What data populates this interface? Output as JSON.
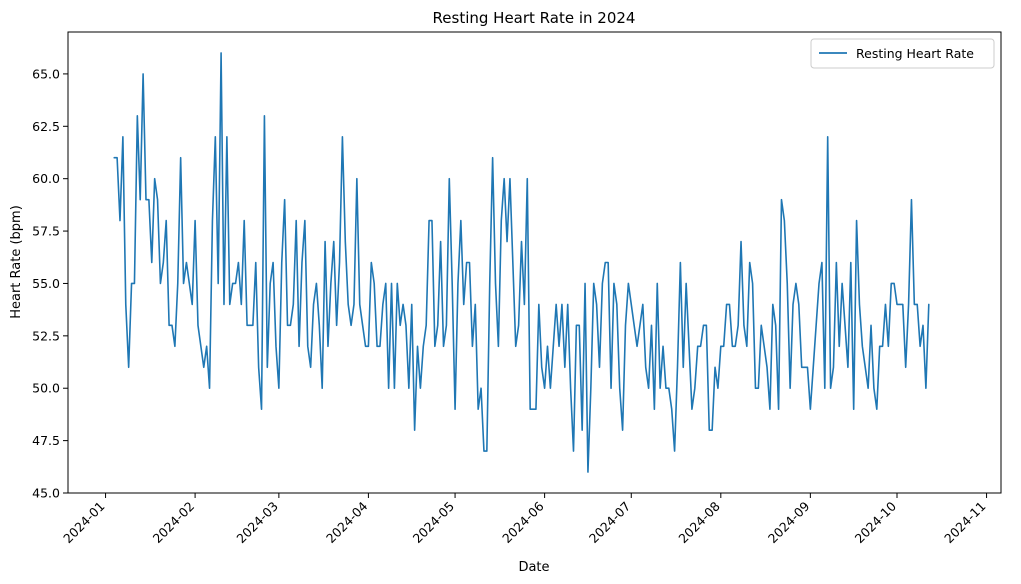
{
  "chart_data": {
    "type": "line",
    "title": "Resting Heart Rate in 2024",
    "xlabel": "Date",
    "ylabel": "Heart Rate (bpm)",
    "ylim": [
      45.0,
      67.0
    ],
    "xlim": [
      "2023-12-19",
      "2024-11-06"
    ],
    "grid": false,
    "legend_position": "top-right",
    "x_ticks": [
      "2024-01-01",
      "2024-02-01",
      "2024-03-01",
      "2024-04-01",
      "2024-05-01",
      "2024-06-01",
      "2024-07-01",
      "2024-08-01",
      "2024-09-01",
      "2024-10-01",
      "2024-11-01"
    ],
    "y_ticks": [
      "45.0",
      "47.5",
      "50.0",
      "52.5",
      "55.0",
      "57.5",
      "60.0",
      "62.5",
      "65.0"
    ],
    "x_start": "2024-01-01",
    "series": [
      {
        "name": "Resting Heart Rate",
        "color": "#1f77b4",
        "values": [
          61,
          61,
          58,
          62,
          54,
          51,
          55,
          55,
          63,
          59,
          65,
          59,
          59,
          56,
          60,
          59,
          55,
          56,
          58,
          53,
          53,
          52,
          55,
          61,
          55,
          56,
          55,
          54,
          58,
          53,
          52,
          51,
          52,
          50,
          58,
          62,
          55,
          66,
          54,
          62,
          54,
          55,
          55,
          56,
          54,
          58,
          53,
          53,
          53,
          56,
          51,
          49,
          63,
          51,
          55,
          56,
          52,
          50,
          56,
          59,
          53,
          53,
          54,
          58,
          52,
          56,
          58,
          52,
          51,
          54,
          55,
          53,
          50,
          57,
          52,
          55,
          57,
          53,
          56,
          62,
          57,
          54,
          53,
          54,
          60,
          54,
          53,
          52,
          52,
          56,
          55,
          52,
          52,
          54,
          55,
          50,
          55,
          50,
          55,
          53,
          54,
          53,
          50,
          54,
          48,
          52,
          50,
          52,
          53,
          58,
          58,
          52,
          53,
          57,
          52,
          53,
          60,
          55,
          49,
          55,
          58,
          54,
          56,
          56,
          52,
          54,
          49,
          50,
          47,
          47,
          55,
          61,
          55,
          52,
          58,
          60,
          57,
          60,
          56,
          52,
          53,
          57,
          54,
          60,
          49,
          49,
          49,
          54,
          51,
          50,
          52,
          50,
          52,
          54,
          52,
          54,
          51,
          54,
          50,
          47,
          53,
          53,
          48,
          55,
          46,
          50,
          55,
          54,
          51,
          55,
          56,
          56,
          50,
          55,
          54,
          50,
          48,
          53,
          55,
          54,
          53,
          52,
          53,
          54,
          51,
          50,
          53,
          49,
          55,
          50,
          52,
          50,
          50,
          49,
          47,
          51,
          56,
          51,
          55,
          52,
          49,
          50,
          52,
          52,
          53,
          53,
          48,
          48,
          51,
          50,
          52,
          52,
          54,
          54,
          52,
          52,
          53,
          57,
          53,
          52,
          56,
          55,
          50,
          50,
          53,
          52,
          51,
          49,
          54,
          53,
          49,
          59,
          58,
          55,
          50,
          54,
          55,
          54,
          51,
          51,
          51,
          49,
          51,
          53,
          55,
          56,
          50,
          62,
          50,
          51,
          56,
          52,
          55,
          53,
          51,
          56,
          49,
          58,
          54,
          52,
          51,
          50,
          53,
          50,
          49,
          52,
          52,
          54,
          52,
          55,
          55,
          54,
          54,
          54,
          51,
          54,
          59,
          54,
          54,
          52,
          53,
          50,
          54
        ]
      }
    ]
  }
}
